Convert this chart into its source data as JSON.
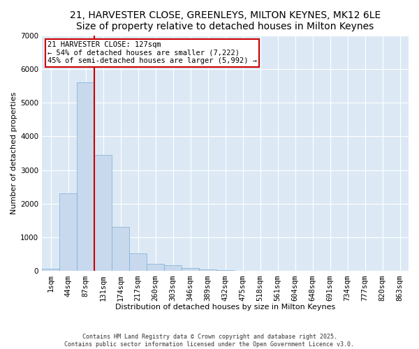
{
  "title_line1": "21, HARVESTER CLOSE, GREENLEYS, MILTON KEYNES, MK12 6LE",
  "title_line2": "Size of property relative to detached houses in Milton Keynes",
  "xlabel": "Distribution of detached houses by size in Milton Keynes",
  "ylabel": "Number of detached properties",
  "categories": [
    "1sqm",
    "44sqm",
    "87sqm",
    "131sqm",
    "174sqm",
    "217sqm",
    "260sqm",
    "303sqm",
    "346sqm",
    "389sqm",
    "432sqm",
    "475sqm",
    "518sqm",
    "561sqm",
    "604sqm",
    "648sqm",
    "691sqm",
    "734sqm",
    "777sqm",
    "820sqm",
    "863sqm"
  ],
  "values": [
    75,
    2300,
    5600,
    3450,
    1320,
    520,
    210,
    175,
    95,
    55,
    30,
    20,
    0,
    0,
    0,
    0,
    0,
    0,
    0,
    0,
    0
  ],
  "bar_color": "#c8d9ee",
  "bar_edge_color": "#7aadd4",
  "vline_x_bin": 2,
  "vline_color": "#cc0000",
  "property_label": "21 HARVESTER CLOSE: 127sqm",
  "annotation_line1": "← 54% of detached houses are smaller (7,222)",
  "annotation_line2": "45% of semi-detached houses are larger (5,992) →",
  "annotation_box_color": "#cc0000",
  "ylim": [
    0,
    7000
  ],
  "yticks": [
    0,
    1000,
    2000,
    3000,
    4000,
    5000,
    6000,
    7000
  ],
  "background_color": "#dce9f5",
  "footnote": "Contains HM Land Registry data © Crown copyright and database right 2025.\nContains public sector information licensed under the Open Government Licence v3.0.",
  "title_fontsize": 10,
  "axis_label_fontsize": 8,
  "tick_fontsize": 7.5
}
